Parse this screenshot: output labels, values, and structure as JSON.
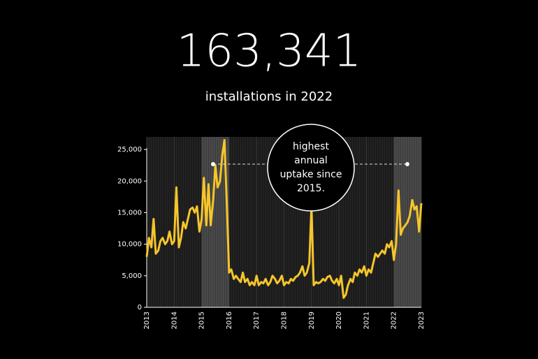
{
  "chart_data": {
    "type": "line",
    "title": "163,341",
    "subtitle": "installations in 2022",
    "annotation": [
      "highest",
      "annual",
      "uptake since",
      "2015."
    ],
    "highlights": [
      [
        2015,
        2016
      ],
      [
        2022,
        2023
      ]
    ],
    "xlim": [
      2013,
      2023
    ],
    "xticks": [
      2013,
      2014,
      2015,
      2016,
      2017,
      2018,
      2019,
      2020,
      2021,
      2022,
      2023
    ],
    "ylim": [
      0,
      27000
    ],
    "yticks": [
      0,
      {
        "value": 5000,
        "label": "5,000"
      },
      {
        "value": 10000,
        "label": "10,000"
      },
      {
        "value": 15000,
        "label": "15,000"
      },
      {
        "value": 20000,
        "label": "20,000"
      },
      {
        "value": 25000,
        "label": "25,000"
      }
    ],
    "x": [
      2013,
      2013.08,
      2013.17,
      2013.25,
      2013.33,
      2013.42,
      2013.5,
      2013.58,
      2013.67,
      2013.75,
      2013.83,
      2013.92,
      2014,
      2014.08,
      2014.17,
      2014.25,
      2014.33,
      2014.42,
      2014.5,
      2014.58,
      2014.67,
      2014.75,
      2014.83,
      2014.92,
      2015,
      2015.08,
      2015.17,
      2015.25,
      2015.33,
      2015.42,
      2015.5,
      2015.58,
      2015.67,
      2015.75,
      2015.83,
      2015.92,
      2016,
      2016.08,
      2016.17,
      2016.25,
      2016.33,
      2016.42,
      2016.5,
      2016.58,
      2016.67,
      2016.75,
      2016.83,
      2016.92,
      2017,
      2017.08,
      2017.17,
      2017.25,
      2017.33,
      2017.42,
      2017.5,
      2017.58,
      2017.67,
      2017.75,
      2017.83,
      2017.92,
      2018,
      2018.08,
      2018.17,
      2018.25,
      2018.33,
      2018.42,
      2018.5,
      2018.58,
      2018.67,
      2018.75,
      2018.83,
      2018.92,
      2019,
      2019.08,
      2019.17,
      2019.25,
      2019.33,
      2019.42,
      2019.5,
      2019.58,
      2019.67,
      2019.75,
      2019.83,
      2019.92,
      2020,
      2020.08,
      2020.17,
      2020.25,
      2020.33,
      2020.42,
      2020.5,
      2020.58,
      2020.67,
      2020.75,
      2020.83,
      2020.92,
      2021,
      2021.08,
      2021.17,
      2021.25,
      2021.33,
      2021.42,
      2021.5,
      2021.58,
      2021.67,
      2021.75,
      2021.83,
      2021.92,
      2022,
      2022.08,
      2022.17,
      2022.25,
      2022.33,
      2022.42,
      2022.5,
      2022.58,
      2022.67,
      2022.75,
      2022.83,
      2022.92,
      2023
    ],
    "series": [
      {
        "name": "installations",
        "color": "#f5c52a",
        "values": [
          8000,
          11000,
          9500,
          14000,
          8500,
          9000,
          10500,
          11000,
          10000,
          10500,
          12000,
          10000,
          10500,
          19000,
          9500,
          11000,
          13500,
          12500,
          14000,
          15500,
          15800,
          15000,
          16000,
          12000,
          14000,
          20500,
          13000,
          19500,
          13000,
          17000,
          22500,
          19000,
          20000,
          24000,
          26500,
          16000,
          5500,
          6000,
          4500,
          5000,
          4500,
          4000,
          5500,
          4000,
          4500,
          3500,
          4000,
          3500,
          5000,
          3500,
          4000,
          3800,
          4500,
          3500,
          4000,
          5000,
          4500,
          3800,
          4200,
          5000,
          3500,
          4000,
          3800,
          4500,
          4200,
          4800,
          5000,
          5500,
          6500,
          5000,
          5500,
          7000,
          16000,
          3500,
          4000,
          3800,
          4000,
          4500,
          4200,
          4800,
          5000,
          4200,
          3800,
          4500,
          3500,
          5000,
          1500,
          2000,
          3500,
          4500,
          4000,
          5500,
          5000,
          6000,
          5500,
          6500,
          5000,
          6000,
          5500,
          7000,
          8500,
          8000,
          8500,
          9000,
          8500,
          10000,
          9500,
          10500,
          7500,
          10000,
          18500,
          11500,
          12500,
          13000,
          13500,
          14500,
          17000,
          15500,
          16000,
          12000,
          16500
        ]
      }
    ]
  }
}
